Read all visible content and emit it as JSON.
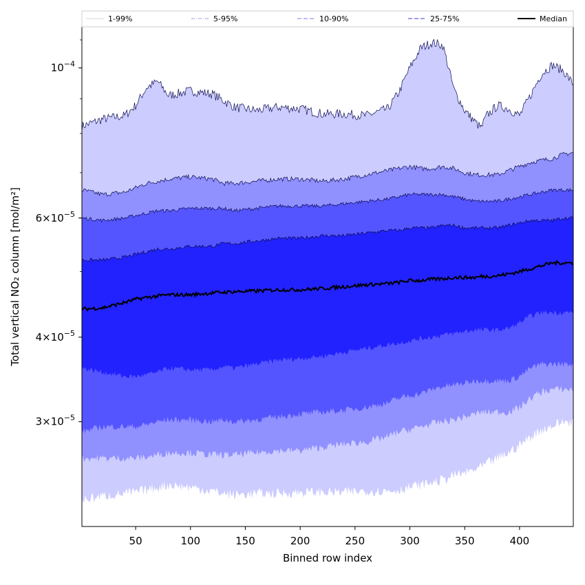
{
  "chart_data": {
    "type": "area",
    "title": "",
    "xlabel": "Binned row index",
    "ylabel": "Total vertical NO₂ column [mol/m²]",
    "xlim": [
      1,
      449
    ],
    "ylim": [
      2.1e-05,
      0.000115
    ],
    "yscale": "log",
    "grid": false,
    "x_ticks": [
      50,
      100,
      150,
      200,
      250,
      300,
      350,
      400
    ],
    "y_ticks": [
      {
        "value": 0.0001,
        "label": "10^-4"
      },
      {
        "value": 6e-05,
        "label": "6×10^-5"
      },
      {
        "value": 4e-05,
        "label": "4×10^-5"
      },
      {
        "value": 3e-05,
        "label": "3×10^-5"
      }
    ],
    "legend": {
      "placement": "top",
      "entries": [
        {
          "label": "1-99%",
          "color": "#ddddee",
          "style": "solid"
        },
        {
          "label": "5-95%",
          "color": "#b0b0e0",
          "style": "dashdot"
        },
        {
          "label": "10-90%",
          "color": "#9090ee",
          "style": "dashed"
        },
        {
          "label": "25-75%",
          "color": "#6060e0",
          "style": "dashed"
        },
        {
          "label": "Median",
          "color": "#000000",
          "style": "solid"
        }
      ]
    },
    "colors": {
      "band_1_99": "#ccccff",
      "band_5_95": "#9090ff",
      "band_10_90": "#5555ff",
      "band_25_75": "#2222ff",
      "median": "#000000"
    },
    "x": [
      1,
      20,
      40,
      50,
      60,
      70,
      80,
      100,
      120,
      130,
      140,
      160,
      180,
      200,
      220,
      240,
      260,
      280,
      290,
      300,
      310,
      320,
      330,
      340,
      350,
      360,
      365,
      370,
      380,
      390,
      400,
      410,
      420,
      430,
      440,
      449
    ],
    "series": [
      {
        "name": "99%",
        "values": [
          8.2e-05,
          8.4e-05,
          8.5e-05,
          8.8e-05,
          9.35e-05,
          9.55e-05,
          9.1e-05,
          9.25e-05,
          9.15e-05,
          8.95e-05,
          8.75e-05,
          8.65e-05,
          8.75e-05,
          8.7e-05,
          8.55e-05,
          8.55e-05,
          8.5e-05,
          8.7e-05,
          9.2e-05,
          0.0001,
          0.000107,
          0.000109,
          0.000108,
          9.3e-05,
          8.65e-05,
          8.3e-05,
          8.15e-05,
          8.5e-05,
          8.8e-05,
          8.7e-05,
          8.5e-05,
          9.1e-05,
          9.8e-05,
          0.000101,
          9.9e-05,
          9.45e-05
        ]
      },
      {
        "name": "95%",
        "values": [
          6.6e-05,
          6.5e-05,
          6.55e-05,
          6.65e-05,
          6.75e-05,
          6.8e-05,
          6.85e-05,
          6.9e-05,
          6.85e-05,
          6.75e-05,
          6.75e-05,
          6.8e-05,
          6.85e-05,
          6.85e-05,
          6.8e-05,
          6.85e-05,
          6.95e-05,
          7.05e-05,
          7.1e-05,
          7.15e-05,
          7.1e-05,
          7.1e-05,
          7.15e-05,
          7.1e-05,
          7e-05,
          6.95e-05,
          6.95e-05,
          6.95e-05,
          6.95e-05,
          7.05e-05,
          7.15e-05,
          7.25e-05,
          7.3e-05,
          7.35e-05,
          7.45e-05,
          7.5e-05
        ]
      },
      {
        "name": "90%",
        "values": [
          6e-05,
          5.95e-05,
          6e-05,
          6.05e-05,
          6.1e-05,
          6.15e-05,
          6.15e-05,
          6.2e-05,
          6.2e-05,
          6.2e-05,
          6.15e-05,
          6.2e-05,
          6.25e-05,
          6.25e-05,
          6.25e-05,
          6.3e-05,
          6.35e-05,
          6.4e-05,
          6.45e-05,
          6.5e-05,
          6.5e-05,
          6.5e-05,
          6.5e-05,
          6.45e-05,
          6.4e-05,
          6.35e-05,
          6.35e-05,
          6.35e-05,
          6.35e-05,
          6.4e-05,
          6.45e-05,
          6.5e-05,
          6.55e-05,
          6.6e-05,
          6.6e-05,
          6.6e-05
        ]
      },
      {
        "name": "75%",
        "values": [
          5.2e-05,
          5.2e-05,
          5.25e-05,
          5.3e-05,
          5.35e-05,
          5.4e-05,
          5.4e-05,
          5.45e-05,
          5.45e-05,
          5.5e-05,
          5.5e-05,
          5.55e-05,
          5.6e-05,
          5.6e-05,
          5.65e-05,
          5.65e-05,
          5.7e-05,
          5.75e-05,
          5.75e-05,
          5.8e-05,
          5.8e-05,
          5.8e-05,
          5.85e-05,
          5.85e-05,
          5.8e-05,
          5.8e-05,
          5.8e-05,
          5.8e-05,
          5.8e-05,
          5.85e-05,
          5.9e-05,
          5.95e-05,
          5.95e-05,
          5.95e-05,
          6e-05,
          6e-05
        ]
      },
      {
        "name": "Median",
        "values": [
          4.4e-05,
          4.42e-05,
          4.5e-05,
          4.55e-05,
          4.58e-05,
          4.6e-05,
          4.62e-05,
          4.62e-05,
          4.65e-05,
          4.66e-05,
          4.67e-05,
          4.68e-05,
          4.7e-05,
          4.7e-05,
          4.72e-05,
          4.75e-05,
          4.78e-05,
          4.8e-05,
          4.82e-05,
          4.85e-05,
          4.85e-05,
          4.87e-05,
          4.88e-05,
          4.9e-05,
          4.9e-05,
          4.9e-05,
          4.92e-05,
          4.92e-05,
          4.93e-05,
          4.96e-05,
          5e-05,
          5.05e-05,
          5.1e-05,
          5.15e-05,
          5.15e-05,
          5.15e-05
        ]
      },
      {
        "name": "25%",
        "values": [
          3.6e-05,
          3.55e-05,
          3.5e-05,
          3.5e-05,
          3.52e-05,
          3.55e-05,
          3.6e-05,
          3.58e-05,
          3.58e-05,
          3.62e-05,
          3.6e-05,
          3.65e-05,
          3.7e-05,
          3.72e-05,
          3.75e-05,
          3.8e-05,
          3.85e-05,
          3.9e-05,
          3.92e-05,
          3.95e-05,
          3.98e-05,
          4e-05,
          4.03e-05,
          4.05e-05,
          4.08e-05,
          4.1e-05,
          4.1e-05,
          4.1e-05,
          4.1e-05,
          4.12e-05,
          4.2e-05,
          4.3e-05,
          4.35e-05,
          4.35e-05,
          4.35e-05,
          4.35e-05
        ]
      },
      {
        "name": "10%",
        "values": [
          2.9e-05,
          2.95e-05,
          2.95e-05,
          2.95e-05,
          2.97e-05,
          3e-05,
          3.02e-05,
          3.02e-05,
          3e-05,
          3.02e-05,
          3e-05,
          3.02e-05,
          3.05e-05,
          3.08e-05,
          3.1e-05,
          3.12e-05,
          3.15e-05,
          3.2e-05,
          3.25e-05,
          3.28e-05,
          3.3e-05,
          3.35e-05,
          3.38e-05,
          3.4e-05,
          3.42e-05,
          3.45e-05,
          3.45e-05,
          3.45e-05,
          3.45e-05,
          3.45e-05,
          3.5e-05,
          3.6e-05,
          3.65e-05,
          3.65e-05,
          3.65e-05,
          3.65e-05
        ]
      },
      {
        "name": "5%",
        "values": [
          2.65e-05,
          2.65e-05,
          2.65e-05,
          2.65e-05,
          2.66e-05,
          2.68e-05,
          2.7e-05,
          2.7e-05,
          2.68e-05,
          2.68e-05,
          2.68e-05,
          2.7e-05,
          2.72e-05,
          2.72e-05,
          2.75e-05,
          2.78e-05,
          2.8e-05,
          2.85e-05,
          2.9e-05,
          2.92e-05,
          2.95e-05,
          2.98e-05,
          3e-05,
          3.02e-05,
          3.05e-05,
          3.08e-05,
          3.1e-05,
          3.1e-05,
          3.1e-05,
          3.1e-05,
          3.15e-05,
          3.25e-05,
          3.32e-05,
          3.35e-05,
          3.35e-05,
          3.35e-05
        ]
      },
      {
        "name": "1%",
        "values": [
          2.3e-05,
          2.33e-05,
          2.35e-05,
          2.36e-05,
          2.38e-05,
          2.4e-05,
          2.42e-05,
          2.4e-05,
          2.37e-05,
          2.35e-05,
          2.34e-05,
          2.35e-05,
          2.35e-05,
          2.36e-05,
          2.36e-05,
          2.36e-05,
          2.37e-05,
          2.37e-05,
          2.38e-05,
          2.4e-05,
          2.42e-05,
          2.44e-05,
          2.46e-05,
          2.5e-05,
          2.52e-05,
          2.55e-05,
          2.57e-05,
          2.6e-05,
          2.65e-05,
          2.7e-05,
          2.77e-05,
          2.85e-05,
          2.92e-05,
          2.96e-05,
          3e-05,
          3e-05
        ]
      }
    ]
  }
}
